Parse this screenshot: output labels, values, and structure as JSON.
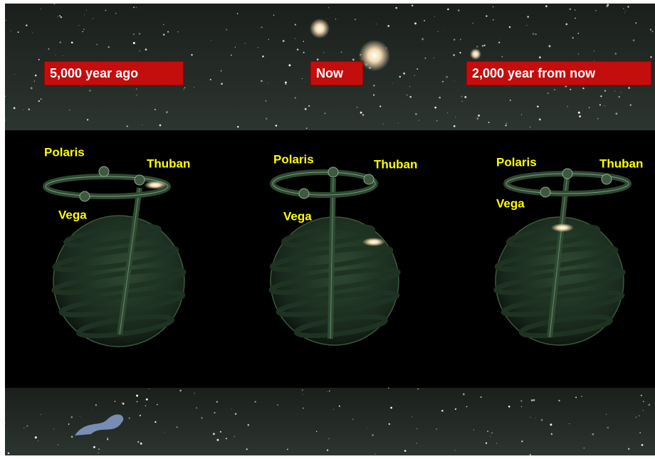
{
  "panels": [
    {
      "label": "5,000 year ago",
      "stars": {
        "polaris": "Polaris",
        "thuban": "Thuban",
        "vega": "Vega"
      }
    },
    {
      "label": "Now",
      "stars": {
        "polaris": "Polaris",
        "thuban": "Thuban",
        "vega": "Vega"
      }
    },
    {
      "label": "2,000 year from now",
      "stars": {
        "polaris": "Polaris",
        "thuban": "Thuban",
        "vega": "Vega"
      }
    }
  ]
}
